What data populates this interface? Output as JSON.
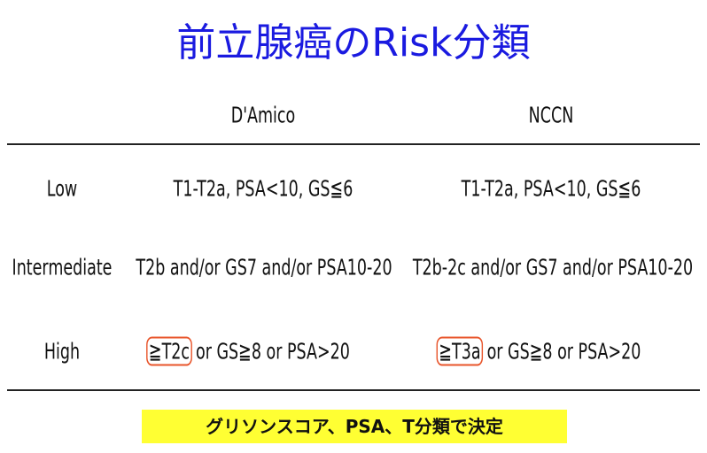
{
  "title": "前立腺癌のRisk分類",
  "table": {
    "headers": [
      "D'Amico",
      "NCCN"
    ],
    "rows": [
      [
        "Low",
        "T1-T2a, PSA<10, GS≦6",
        "T1-T2a, PSA<10, GS≦6"
      ],
      [
        "Intermediate",
        "T2b and/or GS7 and/or PSA10-20",
        "T2b-2c and/or GS7 and/or PSA10-20"
      ],
      [
        "High",
        [
          "≧T2c",
          "or GS≧8 or PSA>20"
        ],
        [
          "≧T3a",
          "or GS≧8 or PSA>20"
        ]
      ]
    ]
  },
  "footer_note": "グリソンスコア、PSA、T分類で決定"
}
